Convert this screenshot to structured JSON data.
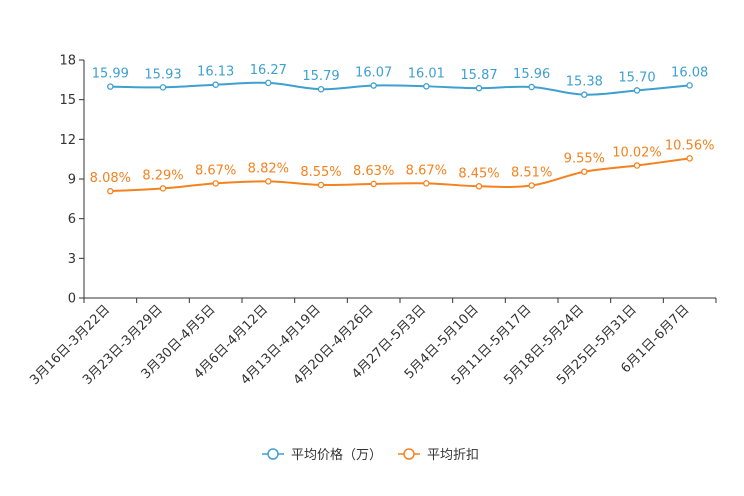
{
  "chart_data": {
    "type": "line",
    "categories": [
      "3月16日-3月22日",
      "3月23日-3月29日",
      "3月30日-4月5日",
      "4月6日-4月12日",
      "4月13日-4月19日",
      "4月20日-4月26日",
      "4月27日-5月3日",
      "5月4日-5月10日",
      "5月11日-5月17日",
      "5月18日-5月24日",
      "5月25日-5月31日",
      "6月1日-6月7日"
    ],
    "ylim": [
      0,
      18
    ],
    "yticks": [
      "0",
      "3",
      "6",
      "9",
      "12",
      "15",
      "18"
    ],
    "series": [
      {
        "name": "平均价格（万）",
        "color": "#3fa0d0",
        "values": [
          15.99,
          15.93,
          16.13,
          16.27,
          15.79,
          16.07,
          16.01,
          15.87,
          15.96,
          15.38,
          15.7,
          16.08
        ],
        "labels": [
          "15.99",
          "15.93",
          "16.13",
          "16.27",
          "15.79",
          "16.07",
          "16.01",
          "15.87",
          "15.96",
          "15.38",
          "15.70",
          "16.08"
        ]
      },
      {
        "name": "平均折扣",
        "color": "#f5821f",
        "values": [
          8.08,
          8.29,
          8.67,
          8.82,
          8.55,
          8.63,
          8.67,
          8.45,
          8.51,
          9.55,
          10.02,
          10.56
        ],
        "labels": [
          "8.08%",
          "8.29%",
          "8.67%",
          "8.82%",
          "8.55%",
          "8.63%",
          "8.67%",
          "8.45%",
          "8.51%",
          "9.55%",
          "10.02%",
          "10.56%"
        ]
      }
    ],
    "legend_position": "bottom-center"
  }
}
